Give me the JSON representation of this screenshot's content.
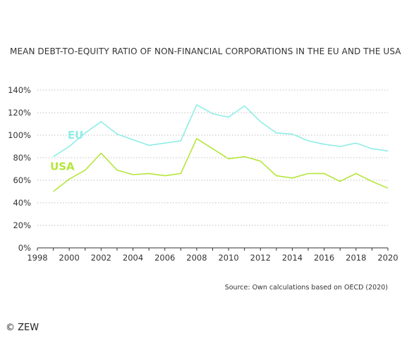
{
  "chart_data": {
    "type": "line",
    "title": "MEAN DEBT-TO-EQUITY RATIO OF NON-FINANCIAL CORPORATIONS IN THE EU AND THE USA",
    "source": "Source: Own calculations based on OECD (2020)",
    "xlim": [
      1998,
      2020
    ],
    "ylim": [
      0,
      140
    ],
    "x_ticks": [
      "1998",
      "2000",
      "2002",
      "2004",
      "2006",
      "2008",
      "2010",
      "2012",
      "2014",
      "2016",
      "2018",
      "2020"
    ],
    "y_ticks": [
      "0%",
      "20%",
      "40%",
      "60%",
      "80%",
      "100%",
      "120%",
      "140%"
    ],
    "grid": true,
    "colors": {
      "EU": "#8eede6",
      "USA": "#b5e63a",
      "grid": "#aaaaaa",
      "axis": "#333333"
    },
    "series": [
      {
        "name": "EU",
        "x": [
          1999,
          2000,
          2001,
          2002,
          2003,
          2004,
          2005,
          2006,
          2007,
          2008,
          2009,
          2010,
          2011,
          2012,
          2013,
          2014,
          2015,
          2016,
          2017,
          2018,
          2019,
          2020
        ],
        "values": [
          81,
          90,
          102,
          112,
          101,
          96,
          91,
          93,
          95,
          127,
          119,
          116,
          126,
          112,
          102,
          101,
          95,
          92,
          90,
          93,
          88,
          86
        ]
      },
      {
        "name": "USA",
        "x": [
          1999,
          2000,
          2001,
          2002,
          2003,
          2004,
          2005,
          2006,
          2007,
          2008,
          2009,
          2010,
          2011,
          2012,
          2013,
          2014,
          2015,
          2016,
          2017,
          2018,
          2019,
          2020
        ],
        "values": [
          50,
          61,
          69,
          84,
          69,
          65,
          66,
          64,
          66,
          97,
          88,
          79,
          81,
          77,
          64,
          62,
          66,
          66,
          59,
          66,
          59,
          53
        ]
      }
    ]
  },
  "footer": {
    "copyright": "© ZEW"
  }
}
